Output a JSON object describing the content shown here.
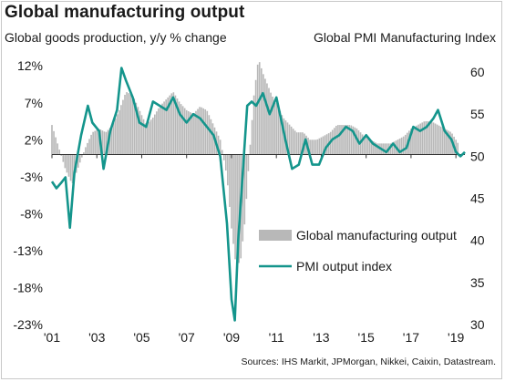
{
  "title": "Global manufacturing output",
  "subtitle_left": "Global goods production, y/y % change",
  "subtitle_right": "Global PMI Manufacturing Index",
  "source": "Sources: IHS Markit, JPMorgan, Nikkei, Caixin, Datastream.",
  "colors": {
    "bars": "#b8b8b8",
    "line": "#14958c",
    "axis": "#333333"
  },
  "chart_data": {
    "type": "bar+line",
    "x_ticks": [
      "'01",
      "'03",
      "'05",
      "'07",
      "'09",
      "'11",
      "'13",
      "'15",
      "'17",
      "'19"
    ],
    "x_range": [
      2001.0,
      2019.4
    ],
    "y_left": {
      "ticks": [
        "12%",
        "7%",
        "2%",
        "-3%",
        "-8%",
        "-13%",
        "-18%",
        "-23%"
      ],
      "range": [
        -23,
        14
      ]
    },
    "y_right": {
      "ticks": [
        "60",
        "55",
        "50",
        "45",
        "40",
        "35",
        "30"
      ],
      "range": [
        30,
        62.5
      ]
    },
    "legend": [
      {
        "label": "Global manufacturing output",
        "kind": "bar"
      },
      {
        "label": "PMI output index",
        "kind": "line"
      }
    ],
    "series": [
      {
        "name": "Global manufacturing output",
        "axis": "left",
        "kind": "bar",
        "points": [
          [
            2001.0,
            4.0
          ],
          [
            2001.3,
            1.0
          ],
          [
            2001.6,
            -2.0
          ],
          [
            2001.9,
            -4.0
          ],
          [
            2002.2,
            -1.5
          ],
          [
            2002.5,
            1.0
          ],
          [
            2002.8,
            3.0
          ],
          [
            2003.1,
            3.5
          ],
          [
            2003.4,
            3.0
          ],
          [
            2003.7,
            4.0
          ],
          [
            2004.0,
            6.0
          ],
          [
            2004.3,
            8.5
          ],
          [
            2004.6,
            8.0
          ],
          [
            2004.9,
            6.0
          ],
          [
            2005.2,
            4.0
          ],
          [
            2005.5,
            5.0
          ],
          [
            2005.8,
            6.5
          ],
          [
            2006.1,
            7.5
          ],
          [
            2006.4,
            8.5
          ],
          [
            2006.7,
            7.0
          ],
          [
            2007.0,
            6.0
          ],
          [
            2007.3,
            5.5
          ],
          [
            2007.6,
            6.5
          ],
          [
            2007.9,
            6.0
          ],
          [
            2008.2,
            4.0
          ],
          [
            2008.5,
            2.0
          ],
          [
            2008.8,
            -3.0
          ],
          [
            2009.0,
            -10.0
          ],
          [
            2009.2,
            -15.0
          ],
          [
            2009.4,
            -14.5
          ],
          [
            2009.6,
            -9.0
          ],
          [
            2009.8,
            0.0
          ],
          [
            2010.0,
            8.0
          ],
          [
            2010.2,
            13.0
          ],
          [
            2010.4,
            11.0
          ],
          [
            2010.6,
            9.5
          ],
          [
            2010.8,
            8.0
          ],
          [
            2011.0,
            7.0
          ],
          [
            2011.3,
            5.0
          ],
          [
            2011.6,
            4.0
          ],
          [
            2011.9,
            3.0
          ],
          [
            2012.2,
            3.0
          ],
          [
            2012.5,
            2.0
          ],
          [
            2012.8,
            2.0
          ],
          [
            2013.1,
            2.5
          ],
          [
            2013.4,
            3.0
          ],
          [
            2013.7,
            4.0
          ],
          [
            2014.0,
            4.0
          ],
          [
            2014.3,
            4.0
          ],
          [
            2014.6,
            3.5
          ],
          [
            2014.9,
            2.5
          ],
          [
            2015.2,
            2.0
          ],
          [
            2015.5,
            1.5
          ],
          [
            2015.8,
            1.5
          ],
          [
            2016.1,
            1.5
          ],
          [
            2016.4,
            2.0
          ],
          [
            2016.7,
            2.5
          ],
          [
            2017.0,
            3.5
          ],
          [
            2017.3,
            4.0
          ],
          [
            2017.6,
            4.5
          ],
          [
            2017.9,
            4.5
          ],
          [
            2018.2,
            4.0
          ],
          [
            2018.5,
            3.5
          ],
          [
            2018.8,
            3.0
          ],
          [
            2019.1,
            1.5
          ]
        ]
      },
      {
        "name": "PMI output index",
        "axis": "right",
        "kind": "line",
        "points": [
          [
            2001.0,
            47.0
          ],
          [
            2001.2,
            46.2
          ],
          [
            2001.4,
            46.8
          ],
          [
            2001.6,
            47.5
          ],
          [
            2001.8,
            41.5
          ],
          [
            2002.0,
            48.0
          ],
          [
            2002.3,
            52.5
          ],
          [
            2002.6,
            56.0
          ],
          [
            2002.8,
            54.0
          ],
          [
            2003.1,
            53.0
          ],
          [
            2003.3,
            48.5
          ],
          [
            2003.6,
            53.0
          ],
          [
            2003.9,
            55.5
          ],
          [
            2004.1,
            60.5
          ],
          [
            2004.3,
            59.0
          ],
          [
            2004.6,
            57.0
          ],
          [
            2004.9,
            54.0
          ],
          [
            2005.2,
            53.5
          ],
          [
            2005.5,
            56.5
          ],
          [
            2005.8,
            56.0
          ],
          [
            2006.1,
            55.5
          ],
          [
            2006.4,
            57.0
          ],
          [
            2006.7,
            55.0
          ],
          [
            2007.0,
            54.0
          ],
          [
            2007.3,
            55.0
          ],
          [
            2007.6,
            54.5
          ],
          [
            2007.9,
            53.5
          ],
          [
            2008.2,
            52.5
          ],
          [
            2008.5,
            50.0
          ],
          [
            2008.8,
            42.0
          ],
          [
            2009.0,
            33.0
          ],
          [
            2009.15,
            30.5
          ],
          [
            2009.3,
            40.0
          ],
          [
            2009.5,
            48.0
          ],
          [
            2009.7,
            56.0
          ],
          [
            2009.9,
            56.5
          ],
          [
            2010.1,
            56.0
          ],
          [
            2010.4,
            57.5
          ],
          [
            2010.7,
            55.0
          ],
          [
            2011.0,
            57.0
          ],
          [
            2011.2,
            54.5
          ],
          [
            2011.4,
            52.0
          ],
          [
            2011.7,
            48.5
          ],
          [
            2012.0,
            49.0
          ],
          [
            2012.3,
            52.0
          ],
          [
            2012.6,
            49.0
          ],
          [
            2012.9,
            49.0
          ],
          [
            2013.2,
            51.0
          ],
          [
            2013.5,
            52.0
          ],
          [
            2013.8,
            52.5
          ],
          [
            2014.1,
            53.5
          ],
          [
            2014.4,
            53.0
          ],
          [
            2014.7,
            51.5
          ],
          [
            2015.0,
            52.5
          ],
          [
            2015.3,
            51.5
          ],
          [
            2015.6,
            51.0
          ],
          [
            2015.9,
            50.5
          ],
          [
            2016.2,
            51.5
          ],
          [
            2016.5,
            50.5
          ],
          [
            2016.8,
            51.0
          ],
          [
            2017.1,
            53.5
          ],
          [
            2017.4,
            53.0
          ],
          [
            2017.7,
            53.5
          ],
          [
            2018.0,
            54.5
          ],
          [
            2018.2,
            55.5
          ],
          [
            2018.5,
            53.0
          ],
          [
            2018.8,
            52.0
          ],
          [
            2019.0,
            50.5
          ],
          [
            2019.2,
            50.0
          ],
          [
            2019.4,
            50.5
          ]
        ]
      }
    ]
  }
}
